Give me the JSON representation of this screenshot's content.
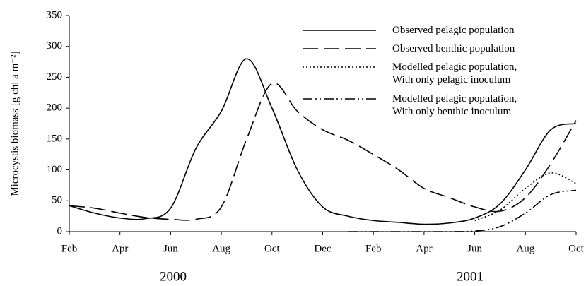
{
  "chart_data": {
    "type": "line",
    "y_label": "Microcystis biomass [g chl a m⁻²]",
    "x": [
      0,
      1,
      2,
      3,
      4,
      5,
      6,
      7,
      8,
      9,
      10,
      11,
      12,
      13,
      14,
      15,
      16,
      17,
      18,
      19,
      20
    ],
    "xlim": [
      0,
      20
    ],
    "xticks": [
      {
        "value": 0,
        "label": "Feb"
      },
      {
        "value": 2,
        "label": "Apr"
      },
      {
        "value": 4,
        "label": "Jun"
      },
      {
        "value": 6,
        "label": "Aug"
      },
      {
        "value": 8,
        "label": "Oct"
      },
      {
        "value": 10,
        "label": "Dec"
      },
      {
        "value": 12,
        "label": "Feb"
      },
      {
        "value": 14,
        "label": "Apr"
      },
      {
        "value": 16,
        "label": "Jun"
      },
      {
        "value": 18,
        "label": "Aug"
      },
      {
        "value": 20,
        "label": "Oct"
      }
    ],
    "year_labels": [
      "2000",
      "2001"
    ],
    "ylim": [
      0,
      350
    ],
    "yticks": [
      0,
      50,
      100,
      150,
      200,
      250,
      300,
      350
    ],
    "grid": false,
    "legend": "upper right",
    "series": [
      {
        "name": "Observed pelagic population",
        "color": "#000000",
        "style": "solid",
        "values": [
          42,
          30,
          22,
          21,
          38,
          135,
          195,
          280,
          200,
          100,
          40,
          25,
          18,
          15,
          12,
          14,
          22,
          45,
          100,
          165,
          175
        ]
      },
      {
        "name": "Observed benthic population",
        "color": "#000000",
        "style": "dashed",
        "values": [
          42,
          38,
          30,
          23,
          20,
          20,
          40,
          150,
          240,
          195,
          165,
          148,
          125,
          100,
          70,
          55,
          40,
          33,
          55,
          110,
          180
        ]
      },
      {
        "name": "Modelled pelagic population,\nWith only pelagic inoculum",
        "color": "#000000",
        "style": "dotted",
        "values": [
          null,
          null,
          null,
          null,
          null,
          null,
          null,
          null,
          null,
          null,
          null,
          null,
          null,
          null,
          null,
          null,
          18,
          35,
          70,
          95,
          78
        ]
      },
      {
        "name": "Modelled pelagic population,\nWith only benthic inoculum",
        "color": "#000000",
        "style": "dashdot",
        "values": [
          null,
          null,
          null,
          null,
          null,
          null,
          null,
          null,
          null,
          null,
          null,
          0,
          0,
          0,
          0,
          0,
          1,
          8,
          30,
          60,
          67
        ]
      }
    ]
  }
}
